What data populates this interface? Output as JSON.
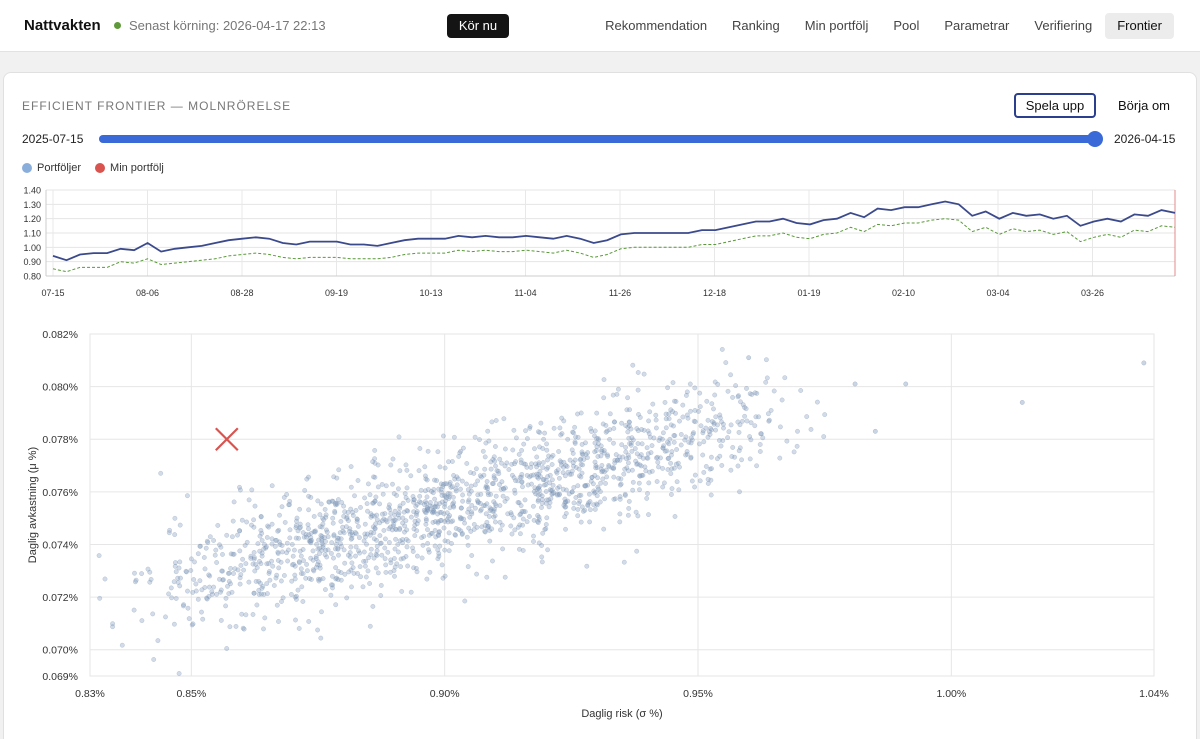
{
  "app": {
    "brand": "Nattvakten",
    "status_text": "Senast körning: 2026-04-17 22:13",
    "run_button": "Kör nu"
  },
  "nav": {
    "items": [
      {
        "label": "Rekommendation"
      },
      {
        "label": "Ranking"
      },
      {
        "label": "Min portfölj"
      },
      {
        "label": "Pool"
      },
      {
        "label": "Parametrar"
      },
      {
        "label": "Verifiering"
      },
      {
        "label": "Frontier"
      }
    ],
    "active_index": 6
  },
  "frontier": {
    "title": "EFFICIENT FRONTIER — MOLNRÖRELSE",
    "play_label": "Spela upp",
    "reset_label": "Börja om",
    "start_date": "2025-07-15",
    "end_date": "2026-04-15",
    "slider_fraction": 1.0,
    "legend": [
      {
        "label": "Portföljer",
        "color": "#8aaedc"
      },
      {
        "label": "Min portfölj",
        "color": "#d9534f"
      }
    ]
  },
  "chart_data": [
    {
      "type": "line",
      "x_ticks": [
        "07-15",
        "08-06",
        "08-28",
        "09-19",
        "10-13",
        "11-04",
        "11-26",
        "12-18",
        "01-19",
        "02-10",
        "03-04",
        "03-26"
      ],
      "y_ticks": [
        "0.80",
        "0.90",
        "1.00",
        "1.10",
        "1.20",
        "1.30",
        "1.40"
      ],
      "ylim": [
        0.8,
        1.4
      ],
      "grid": true,
      "series": [
        {
          "color": "#3b4a8c",
          "style": "solid",
          "values": [
            0.94,
            0.91,
            0.95,
            0.96,
            0.96,
            0.99,
            0.98,
            1.03,
            0.97,
            0.99,
            1.0,
            1.01,
            1.03,
            1.05,
            1.06,
            1.07,
            1.06,
            1.03,
            1.02,
            1.04,
            1.04,
            1.04,
            1.02,
            1.02,
            1.01,
            1.03,
            1.05,
            1.06,
            1.06,
            1.06,
            1.08,
            1.07,
            1.08,
            1.07,
            1.07,
            1.08,
            1.07,
            1.06,
            1.08,
            1.06,
            1.03,
            1.05,
            1.09,
            1.1,
            1.1,
            1.1,
            1.1,
            1.1,
            1.12,
            1.12,
            1.14,
            1.16,
            1.18,
            1.18,
            1.2,
            1.17,
            1.16,
            1.19,
            1.2,
            1.24,
            1.21,
            1.27,
            1.26,
            1.28,
            1.28,
            1.3,
            1.32,
            1.3,
            1.22,
            1.25,
            1.2,
            1.24,
            1.22,
            1.23,
            1.2,
            1.22,
            1.15,
            1.18,
            1.2,
            1.18,
            1.23,
            1.22,
            1.26,
            1.24
          ]
        },
        {
          "color": "#5a9a3a",
          "style": "dashed",
          "values": [
            0.85,
            0.83,
            0.86,
            0.86,
            0.86,
            0.9,
            0.89,
            0.92,
            0.88,
            0.89,
            0.9,
            0.91,
            0.92,
            0.94,
            0.95,
            0.96,
            0.95,
            0.93,
            0.92,
            0.93,
            0.93,
            0.93,
            0.92,
            0.92,
            0.92,
            0.93,
            0.95,
            0.96,
            0.96,
            0.96,
            0.98,
            0.97,
            0.98,
            0.97,
            0.97,
            0.98,
            0.97,
            0.96,
            0.98,
            0.96,
            0.93,
            0.95,
            0.99,
            1.0,
            1.0,
            1.0,
            1.0,
            1.0,
            1.02,
            1.02,
            1.04,
            1.06,
            1.08,
            1.08,
            1.1,
            1.07,
            1.06,
            1.09,
            1.1,
            1.14,
            1.11,
            1.16,
            1.15,
            1.17,
            1.17,
            1.19,
            1.2,
            1.19,
            1.11,
            1.14,
            1.09,
            1.13,
            1.11,
            1.12,
            1.09,
            1.11,
            1.04,
            1.07,
            1.09,
            1.07,
            1.12,
            1.11,
            1.15,
            1.14
          ]
        }
      ]
    },
    {
      "type": "scatter",
      "xlabel": "Daglig risk (σ %)",
      "ylabel": "Daglig avkastning (μ %)",
      "x_ticks": [
        "0.83%",
        "0.85%",
        "0.90%",
        "0.95%",
        "1.00%",
        "1.04%"
      ],
      "x_tick_values": [
        0.83,
        0.85,
        0.9,
        0.95,
        1.0,
        1.04
      ],
      "y_ticks": [
        "0.069%",
        "0.070%",
        "0.072%",
        "0.074%",
        "0.076%",
        "0.078%",
        "0.080%",
        "0.082%"
      ],
      "y_tick_values": [
        0.069,
        0.07,
        0.072,
        0.074,
        0.076,
        0.078,
        0.08,
        0.082
      ],
      "xlim": [
        0.83,
        1.04
      ],
      "ylim": [
        0.069,
        0.082
      ],
      "grid": true,
      "cloud": {
        "point_count": 1600,
        "color": "#8aa0c0",
        "trend_start": [
          0.836,
          0.0715
        ],
        "trend_end": [
          0.972,
          0.0795
        ],
        "outliers": [
          [
            1.038,
            0.0809
          ],
          [
            1.014,
            0.0794
          ],
          [
            0.991,
            0.0801
          ],
          [
            0.981,
            0.0801
          ],
          [
            0.985,
            0.0783
          ],
          [
            0.96,
            0.0811
          ]
        ]
      },
      "my_portfolio": {
        "x": 0.857,
        "y": 0.078,
        "color": "#d9534f",
        "marker": "x"
      }
    }
  ]
}
